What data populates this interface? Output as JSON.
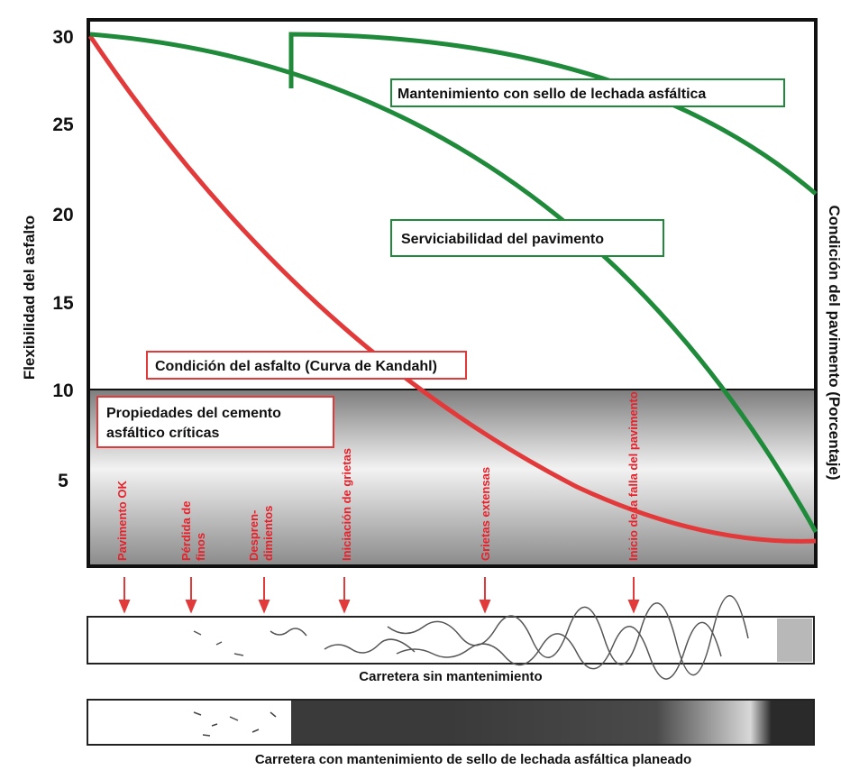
{
  "axis": {
    "y_label": "Flexibilidad del asfalto",
    "y_ticks": [
      "30",
      "25",
      "20",
      "15",
      "10",
      "5"
    ],
    "y2_label": "Condición del pavimento (Porcentaje)"
  },
  "annotations": {
    "maintenance": "Mantenimiento con sello de lechada asfáltica",
    "serviceability": "Serviciabilidad del pavimento",
    "asphalt_condition": "Condición del asfalto (Curva de Kandahl)",
    "critical_1": "Propiedades del cemento",
    "critical_2": "asfáltico críticas"
  },
  "stages": [
    [
      "Pavimento OK"
    ],
    [
      "Pérdida de",
      "finos"
    ],
    [
      "Despren-",
      "dimientos"
    ],
    [
      "Iniciación de grietas"
    ],
    [
      "Grietas extensas"
    ],
    [
      "Inicio de la falla del pavimento"
    ]
  ],
  "roads": {
    "without": "Carretera sin mantenimiento",
    "with": "Carretera con mantenimiento de sello de lechada asfáltica planeado"
  }
}
